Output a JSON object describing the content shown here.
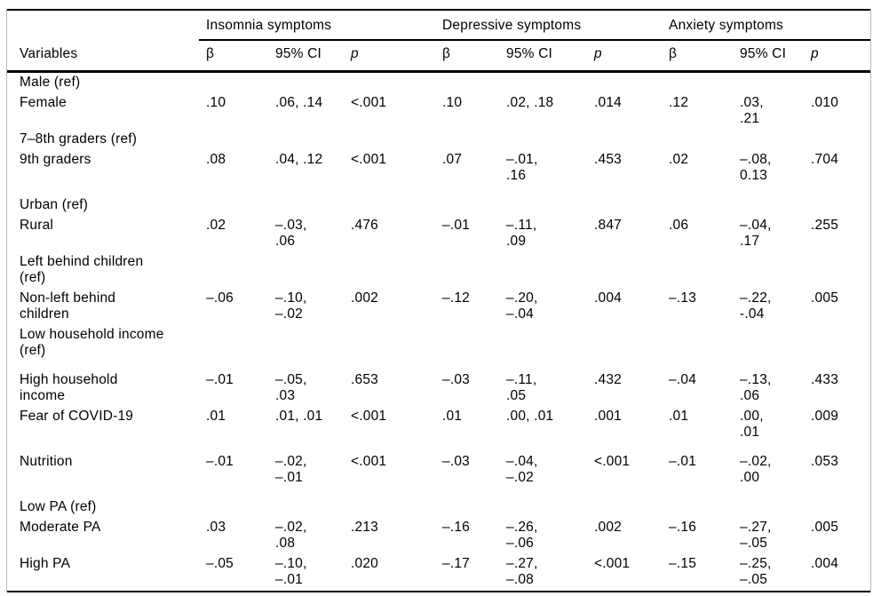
{
  "style": {
    "rule_color": "#000000",
    "frame_color": "#b9b9b9",
    "background": "#ffffff"
  },
  "table": {
    "column_groups": [
      "Insomnia symptoms",
      "Depressive symptoms",
      "Anxiety symptoms"
    ],
    "variables_header": "Variables",
    "sub_headers": [
      "β",
      "95% CI",
      "p"
    ],
    "rows": [
      {
        "label": "Male (ref)",
        "gap_before": false,
        "cells": [
          "",
          "",
          "",
          "",
          "",
          "",
          "",
          "",
          ""
        ]
      },
      {
        "label": "Female",
        "gap_before": false,
        "cells": [
          ".10",
          ".06, .14",
          "<.001",
          ".10",
          ".02, .18",
          ".014",
          ".12",
          ".03,\n.21",
          ".010"
        ]
      },
      {
        "label": "7–8th graders (ref)",
        "gap_before": false,
        "cells": [
          "",
          "",
          "",
          "",
          "",
          "",
          "",
          "",
          ""
        ]
      },
      {
        "label": "9th graders",
        "gap_before": false,
        "cells": [
          ".08",
          ".04, .12",
          "<.001",
          ".07",
          "–.01,\n.16",
          ".453",
          ".02",
          "–.08,\n0.13",
          ".704"
        ]
      },
      {
        "label": "Urban (ref)",
        "gap_before": true,
        "cells": [
          "",
          "",
          "",
          "",
          "",
          "",
          "",
          "",
          ""
        ]
      },
      {
        "label": "Rural",
        "gap_before": false,
        "cells": [
          ".02",
          "–.03,\n.06",
          ".476",
          "–.01",
          "–.11,\n.09",
          ".847",
          ".06",
          "–.04,\n.17",
          ".255"
        ]
      },
      {
        "label": "Left behind children\n(ref)",
        "gap_before": false,
        "cells": [
          "",
          "",
          "",
          "",
          "",
          "",
          "",
          "",
          ""
        ]
      },
      {
        "label": "Non-left behind\nchildren",
        "gap_before": false,
        "cells": [
          "–.06",
          "–.10,\n–.02",
          ".002",
          "–.12",
          "–.20,\n–.04",
          ".004",
          "–.13",
          "–.22,\n-.04",
          ".005"
        ]
      },
      {
        "label": "Low household income\n(ref)",
        "gap_before": false,
        "cells": [
          "",
          "",
          "",
          "",
          "",
          "",
          "",
          "",
          ""
        ]
      },
      {
        "label": "High household\nincome",
        "gap_before": true,
        "cells": [
          "–.01",
          "–.05,\n.03",
          ".653",
          "–.03",
          "–.11,\n.05",
          ".432",
          "–.04",
          "–.13,\n.06",
          ".433"
        ]
      },
      {
        "label": "Fear of COVID-19",
        "gap_before": false,
        "cells": [
          ".01",
          ".01, .01",
          "<.001",
          ".01",
          ".00, .01",
          ".001",
          ".01",
          ".00,\n.01",
          ".009"
        ]
      },
      {
        "label": "Nutrition",
        "gap_before": true,
        "cells": [
          "–.01",
          "–.02,\n–.01",
          "<.001",
          "–.03",
          "–.04,\n–.02",
          "<.001",
          "–.01",
          "–.02,\n.00",
          ".053"
        ]
      },
      {
        "label": "Low PA (ref)",
        "gap_before": true,
        "cells": [
          "",
          "",
          "",
          "",
          "",
          "",
          "",
          "",
          ""
        ]
      },
      {
        "label": "Moderate PA",
        "gap_before": false,
        "cells": [
          ".03",
          "–.02,\n.08",
          ".213",
          "–.16",
          "–.26,\n–.06",
          ".002",
          "–.16",
          "–.27,\n–.05",
          ".005"
        ]
      },
      {
        "label": "High PA",
        "gap_before": false,
        "cells": [
          "–.05",
          "–.10,\n–.01",
          ".020",
          "–.17",
          "–.27,\n–.08",
          "<.001",
          "–.15",
          "–.25,\n–.05",
          ".004"
        ]
      }
    ]
  }
}
